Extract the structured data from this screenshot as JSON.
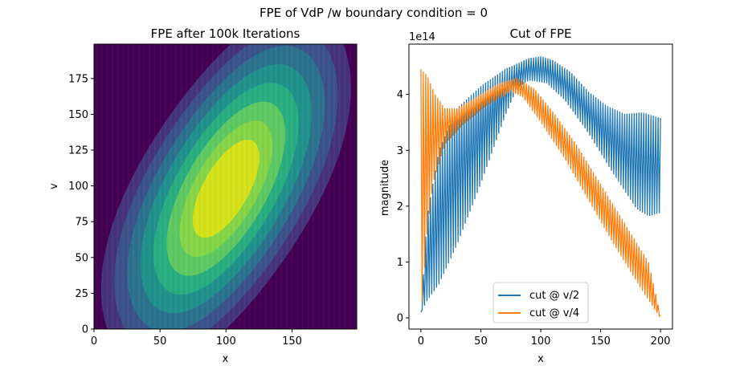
{
  "figure": {
    "suptitle": "FPE of VdP /w boundary condition = 0"
  },
  "chart_data": [
    {
      "type": "heatmap",
      "title": "FPE after 100k Iterations",
      "xlabel": "x",
      "ylabel": "v",
      "xlim": [
        0,
        199
      ],
      "ylim": [
        0,
        199
      ],
      "xticks": [
        "0",
        "50",
        "100",
        "150"
      ],
      "yticks": [
        "0",
        "25",
        "50",
        "75",
        "100",
        "125",
        "150",
        "175"
      ],
      "colormap": "viridis",
      "description_levels": 8
    },
    {
      "type": "line",
      "title": "Cut of FPE",
      "xlabel": "x",
      "ylabel": "magnitude",
      "offset_text": "1e14",
      "xlim": [
        -10,
        210
      ],
      "ylim": [
        -0.2,
        4.9
      ],
      "xticks": [
        "0",
        "50",
        "100",
        "150",
        "200"
      ],
      "yticks": [
        "0",
        "1",
        "2",
        "3",
        "4"
      ],
      "legend_position": "lower-center",
      "series": [
        {
          "name": "cut @ v/2",
          "color": "#1f77b4",
          "upper_envelope": [
            [
              0,
              0.1
            ],
            [
              5,
              1.8
            ],
            [
              15,
              3.0
            ],
            [
              30,
              3.75
            ],
            [
              50,
              4.15
            ],
            [
              70,
              4.45
            ],
            [
              90,
              4.65
            ],
            [
              100,
              4.68
            ],
            [
              110,
              4.62
            ],
            [
              125,
              4.4
            ],
            [
              140,
              4.05
            ],
            [
              155,
              3.8
            ],
            [
              170,
              3.65
            ],
            [
              185,
              3.68
            ],
            [
              200,
              3.58
            ]
          ],
          "lower_envelope": [
            [
              0,
              0.1
            ],
            [
              5,
              0.3
            ],
            [
              15,
              0.6
            ],
            [
              30,
              1.3
            ],
            [
              50,
              2.4
            ],
            [
              70,
              3.6
            ],
            [
              80,
              4.1
            ],
            [
              90,
              4.25
            ],
            [
              105,
              4.2
            ],
            [
              120,
              3.9
            ],
            [
              140,
              3.3
            ],
            [
              160,
              2.6
            ],
            [
              180,
              1.95
            ],
            [
              190,
              1.82
            ],
            [
              200,
              1.88
            ]
          ]
        },
        {
          "name": "cut @ v/4",
          "color": "#ff7f0e",
          "upper_envelope": [
            [
              0,
              4.45
            ],
            [
              5,
              4.35
            ],
            [
              12,
              4.0
            ],
            [
              20,
              3.75
            ],
            [
              30,
              3.75
            ],
            [
              50,
              4.0
            ],
            [
              65,
              4.2
            ],
            [
              80,
              4.3
            ],
            [
              95,
              4.1
            ],
            [
              110,
              3.7
            ],
            [
              130,
              3.1
            ],
            [
              150,
              2.4
            ],
            [
              170,
              1.7
            ],
            [
              190,
              1.0
            ],
            [
              200,
              0.05
            ]
          ],
          "lower_envelope": [
            [
              0,
              0.0
            ],
            [
              5,
              1.5
            ],
            [
              10,
              2.4
            ],
            [
              20,
              3.1
            ],
            [
              35,
              3.45
            ],
            [
              55,
              3.8
            ],
            [
              75,
              4.05
            ],
            [
              85,
              3.95
            ],
            [
              100,
              3.5
            ],
            [
              120,
              2.85
            ],
            [
              140,
              2.1
            ],
            [
              160,
              1.35
            ],
            [
              180,
              0.65
            ],
            [
              195,
              0.15
            ],
            [
              200,
              0.0
            ]
          ]
        }
      ]
    }
  ]
}
